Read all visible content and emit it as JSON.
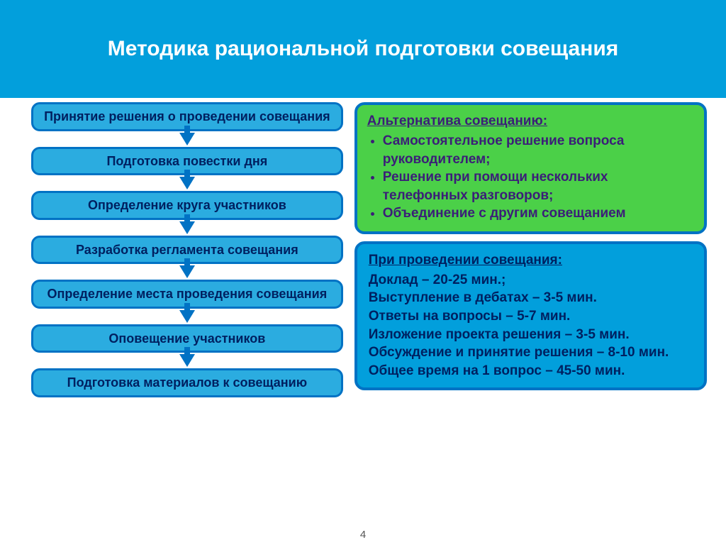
{
  "type": "infographic",
  "slide": {
    "title": "Методика рациональной подготовки совещания",
    "page_number": "4",
    "background_header": "#029fdc",
    "background_body": "#ffffff",
    "title_color": "#ffffff",
    "title_fontsize": 30
  },
  "flowchart": {
    "box_fill": "#2bace0",
    "box_border": "#0172c4",
    "box_text_color": "#002060",
    "box_border_radius": 12,
    "box_border_width": 3,
    "box_fontsize": 18,
    "arrow_color": "#0172c4",
    "steps": [
      "Принятие решения о проведении совещания",
      "Подготовка повестки дня",
      "Определение круга участников",
      "Разработка регламента совещания",
      "Определение места проведения совещания",
      "Оповещение участников",
      "Подготовка материалов к совещанию"
    ]
  },
  "alternatives": {
    "title": "Альтернатива  совещанию:",
    "box_fill": "#4bd048",
    "box_border": "#0172c4",
    "text_color": "#3b1e78",
    "fontsize": 19,
    "items": [
      "Самостоятельное решение вопроса руководителем;",
      "Решение при помощи нескольких телефонных разговоров;",
      "Объединение с другим совещанием"
    ]
  },
  "timing": {
    "title": "При проведении совещания:",
    "box_fill": "#029fdc",
    "box_border": "#0172c4",
    "text_color": "#002060",
    "fontsize": 19,
    "lines": [
      "Доклад – 20-25 мин.;",
      "Выступление в дебатах – 3-5 мин.",
      "Ответы на вопросы – 5-7 мин.",
      "Изложение проекта решения – 3-5 мин.",
      "Обсуждение и принятие решения – 8-10 мин.",
      "Общее время на 1 вопрос – 45-50 мин."
    ]
  }
}
